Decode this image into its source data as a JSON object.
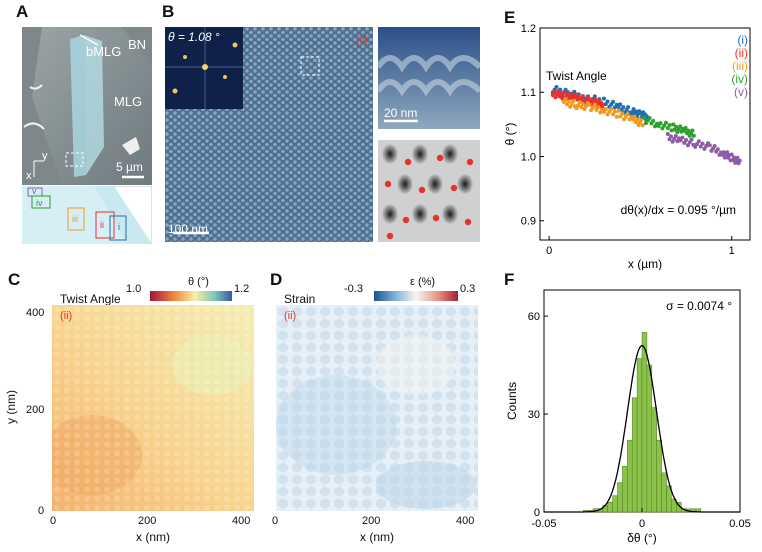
{
  "panels": {
    "a": {
      "label": "A",
      "texts": {
        "bn": "BN",
        "bmlg": "bMLG",
        "mlg": "MLG",
        "scale": "5 µm",
        "axis_y": "y",
        "axis_x": "x"
      },
      "schematic_labels": [
        "v",
        "iv",
        "iii",
        "ii",
        "i"
      ]
    },
    "b": {
      "label": "B",
      "angle_text": "θ = 1.08 °",
      "region_tag": "(ii)",
      "scale_main": "100 nm",
      "scale_zoom": "20 nm"
    },
    "c": {
      "label": "C",
      "title": "Twist Angle",
      "region_tag": "(ii)",
      "cbar_label": "θ (°)",
      "cbar_min": "1.0",
      "cbar_max": "1.2",
      "xlabel": "x (nm)",
      "ylabel": "y (nm)",
      "xticks": [
        "0",
        "200",
        "400"
      ],
      "yticks": [
        "0",
        "200",
        "400"
      ]
    },
    "d": {
      "label": "D",
      "title": "Strain",
      "region_tag": "(ii)",
      "cbar_label": "ε (%)",
      "cbar_min": "-0.3",
      "cbar_max": "0.3",
      "xlabel": "x (nm)",
      "xticks": [
        "0",
        "200",
        "400"
      ]
    },
    "e": {
      "label": "E"
    },
    "f": {
      "label": "F"
    }
  },
  "chart_data": [
    {
      "type": "scatter",
      "panel": "E",
      "title": "Twist Angle",
      "xlabel": "x (µm)",
      "ylabel": "θ (°)",
      "xlim": [
        -0.05,
        1.1
      ],
      "ylim": [
        0.87,
        1.2
      ],
      "xticks": [
        "0",
        "x (µm)",
        "1"
      ],
      "xtick_values": [
        0,
        1
      ],
      "yticks": [
        "0.9",
        "1.0",
        "1.1",
        "1.2"
      ],
      "ytick_values": [
        0.9,
        1.0,
        1.1,
        1.2
      ],
      "annotation": "dθ(x)/dx = 0.095 °/µm",
      "series": [
        {
          "name": "(i)",
          "color": "#1f6fb5",
          "x": [
            0.02,
            0.1,
            0.2,
            0.3,
            0.38,
            0.45,
            0.5,
            0.54
          ],
          "y": [
            1.105,
            1.098,
            1.092,
            1.085,
            1.077,
            1.07,
            1.065,
            1.062
          ]
        },
        {
          "name": "(ii)",
          "color": "#e8312b",
          "x": [
            0.02,
            0.08,
            0.14,
            0.2,
            0.26,
            0.3
          ],
          "y": [
            1.098,
            1.095,
            1.092,
            1.088,
            1.083,
            1.08
          ]
        },
        {
          "name": "(iii)",
          "color": "#f39a1e",
          "x": [
            0.08,
            0.15,
            0.22,
            0.3,
            0.38,
            0.46,
            0.52
          ],
          "y": [
            1.085,
            1.08,
            1.078,
            1.072,
            1.066,
            1.058,
            1.05
          ]
        },
        {
          "name": "(iv)",
          "color": "#2ca02c",
          "x": [
            0.52,
            0.6,
            0.68,
            0.74,
            0.8
          ],
          "y": [
            1.058,
            1.05,
            1.045,
            1.04,
            1.034
          ]
        },
        {
          "name": "(v)",
          "color": "#8e5ba6",
          "x": [
            0.65,
            0.72,
            0.8,
            0.88,
            0.95,
            1.0,
            1.05
          ],
          "y": [
            1.03,
            1.025,
            1.02,
            1.015,
            1.005,
            0.998,
            0.99
          ]
        }
      ]
    },
    {
      "type": "bar",
      "panel": "F",
      "xlabel": "δθ (°)",
      "ylabel": "Counts",
      "xlim": [
        -0.05,
        0.05
      ],
      "ylim": [
        0,
        68
      ],
      "xticks": [
        "-0.05",
        "0",
        "0.05"
      ],
      "xtick_values": [
        -0.05,
        0,
        0.05
      ],
      "yticks": [
        "0",
        "30",
        "60"
      ],
      "ytick_values": [
        0,
        30,
        60
      ],
      "annotation": "σ = 0.0074 °",
      "bin_edges": [
        -0.03,
        -0.0275,
        -0.025,
        -0.0225,
        -0.02,
        -0.0175,
        -0.015,
        -0.0125,
        -0.01,
        -0.0075,
        -0.005,
        -0.0025,
        0.0,
        0.0025,
        0.005,
        0.0075,
        0.01,
        0.0125,
        0.015,
        0.0175,
        0.02,
        0.0225,
        0.025,
        0.0275,
        0.03
      ],
      "counts": [
        0.5,
        0.5,
        1,
        1,
        2,
        3,
        5,
        9,
        14,
        22,
        35,
        47,
        55,
        45,
        32,
        22,
        12,
        8,
        4,
        3,
        1,
        1,
        1,
        1
      ],
      "fit": {
        "type": "gaussian",
        "mean": 0.0,
        "sigma": 0.0074,
        "peak": 51
      }
    }
  ]
}
